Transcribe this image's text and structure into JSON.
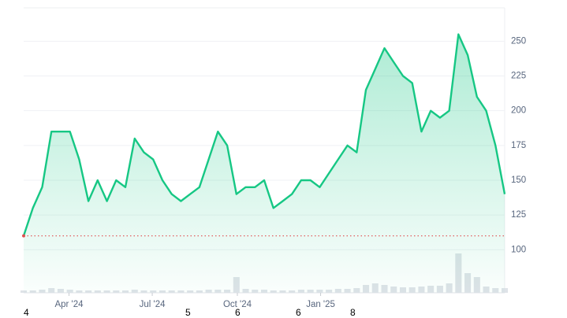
{
  "chart_data": {
    "type": "area",
    "values": [
      110,
      130,
      145,
      185,
      185,
      185,
      165,
      135,
      150,
      135,
      150,
      145,
      180,
      170,
      165,
      150,
      140,
      135,
      140,
      145,
      165,
      185,
      175,
      140,
      145,
      145,
      150,
      130,
      135,
      140,
      150,
      150,
      145,
      155,
      165,
      175,
      170,
      215,
      230,
      245,
      235,
      225,
      220,
      185,
      200,
      195,
      200,
      255,
      240,
      210,
      200,
      175,
      140
    ],
    "volume": [
      3,
      3,
      4,
      6,
      5,
      4,
      3,
      3,
      3,
      3,
      3,
      3,
      4,
      3,
      3,
      3,
      3,
      3,
      3,
      3,
      4,
      4,
      4,
      20,
      5,
      4,
      4,
      3,
      3,
      3,
      4,
      4,
      4,
      4,
      5,
      5,
      6,
      10,
      12,
      10,
      8,
      7,
      7,
      8,
      9,
      9,
      12,
      50,
      25,
      20,
      8,
      6,
      6
    ],
    "color": "#16c784",
    "xlim": [
      0,
      52
    ],
    "xticks": [
      {
        "value": 4.9,
        "label": "Apr '24"
      },
      {
        "value": 13.9,
        "label": "Jul '24"
      },
      {
        "value": 23.1,
        "label": "Oct '24"
      },
      {
        "value": 32.1,
        "label": "Jan '25"
      }
    ],
    "ylim": [
      69,
      274
    ],
    "yticks": [
      100,
      125,
      150,
      175,
      200,
      225,
      250
    ],
    "grid": true,
    "footer_digits": [
      "4",
      "5",
      "6",
      "6",
      "8"
    ]
  }
}
